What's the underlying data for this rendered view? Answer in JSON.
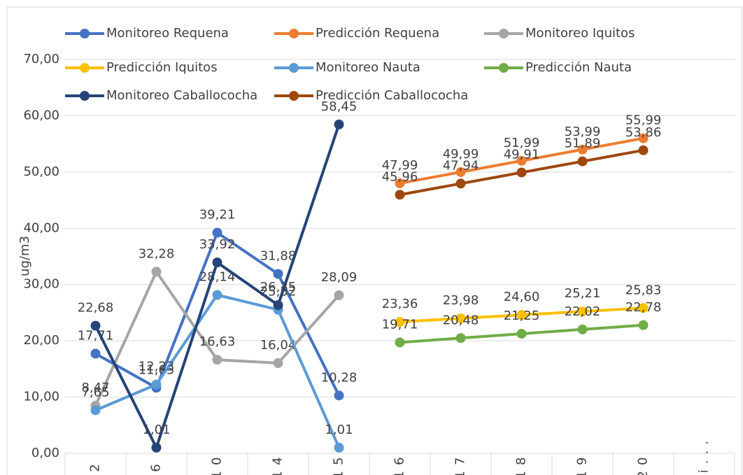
{
  "chart_data": {
    "type": "line",
    "y_label": "ug/m3",
    "categories": [
      "2",
      "6",
      "10",
      "14",
      "15",
      "16",
      "17",
      "18",
      "19",
      "20",
      "Tri..."
    ],
    "ylim": [
      0,
      70
    ],
    "yticks": [
      {
        "value": 0,
        "label": "0,00"
      },
      {
        "value": 10,
        "label": "10,00"
      },
      {
        "value": 20,
        "label": "20,00"
      },
      {
        "value": 30,
        "label": "30,00"
      },
      {
        "value": 40,
        "label": "40,00"
      },
      {
        "value": 50,
        "label": "50,00"
      },
      {
        "value": 60,
        "label": "60,00"
      },
      {
        "value": 70,
        "label": "70,00"
      }
    ],
    "grid": true,
    "legend": "top",
    "series": [
      {
        "name": "Monitoreo Requena",
        "color": "#4472c4",
        "values": [
          17.71,
          11.65,
          39.21,
          31.88,
          10.28,
          null,
          null,
          null,
          null,
          null,
          null
        ],
        "value_labels": [
          "17,71",
          "11,65",
          "39,21",
          "31,88",
          "10,28",
          null,
          null,
          null,
          null,
          null,
          null
        ]
      },
      {
        "name": "Predicción Requena",
        "color": "#ed7d31",
        "values": [
          null,
          null,
          null,
          null,
          null,
          47.99,
          49.99,
          51.99,
          53.99,
          55.99,
          null
        ],
        "value_labels": [
          null,
          null,
          null,
          null,
          null,
          "47,99",
          "49,99",
          "51,99",
          "53,99",
          "55,99",
          null
        ]
      },
      {
        "name": "Monitoreo Iquitos",
        "color": "#a5a5a5",
        "values": [
          8.47,
          32.28,
          16.63,
          16.04,
          28.09,
          null,
          null,
          null,
          null,
          null,
          null
        ],
        "value_labels": [
          "8,47",
          "32,28",
          "16,63",
          "16,04",
          "28,09",
          null,
          null,
          null,
          null,
          null,
          null
        ]
      },
      {
        "name": "Predicción Iquitos",
        "color": "#ffc000",
        "values": [
          null,
          null,
          null,
          null,
          null,
          23.36,
          23.98,
          24.6,
          25.21,
          25.83,
          null
        ],
        "value_labels": [
          null,
          null,
          null,
          null,
          null,
          "23,36",
          "23,98",
          "24,60",
          "25,21",
          "25,83",
          null
        ]
      },
      {
        "name": "Monitoreo Nauta",
        "color": "#5b9bd5",
        "values": [
          7.65,
          12.23,
          28.14,
          25.52,
          1.01,
          null,
          null,
          null,
          null,
          null,
          null
        ],
        "value_labels": [
          "7,65",
          "12,23",
          "28,14",
          "25,52",
          "1,01",
          null,
          null,
          null,
          null,
          null,
          null
        ]
      },
      {
        "name": "Predicción Nauta",
        "color": "#70ad47",
        "values": [
          null,
          null,
          null,
          null,
          null,
          19.71,
          20.48,
          21.25,
          22.02,
          22.78,
          null
        ],
        "value_labels": [
          null,
          null,
          null,
          null,
          null,
          "19,71",
          "20,48",
          "21,25",
          "22,02",
          "22,78",
          null
        ]
      },
      {
        "name": "Monitoreo Caballococha",
        "color": "#264478",
        "values": [
          22.68,
          1.01,
          33.92,
          26.35,
          58.45,
          null,
          null,
          null,
          null,
          null,
          null
        ],
        "value_labels": [
          "22,68",
          "1,01",
          "33,92",
          "26,35",
          "58,45",
          null,
          null,
          null,
          null,
          null,
          null
        ]
      },
      {
        "name": "Predicción Caballococha",
        "color": "#9e480e",
        "values": [
          null,
          null,
          null,
          null,
          null,
          45.96,
          47.94,
          49.91,
          51.89,
          53.86,
          null
        ],
        "value_labels": [
          null,
          null,
          null,
          null,
          null,
          "45,96",
          "47,94",
          "49,91",
          "51,89",
          "53,86",
          null
        ]
      }
    ]
  }
}
